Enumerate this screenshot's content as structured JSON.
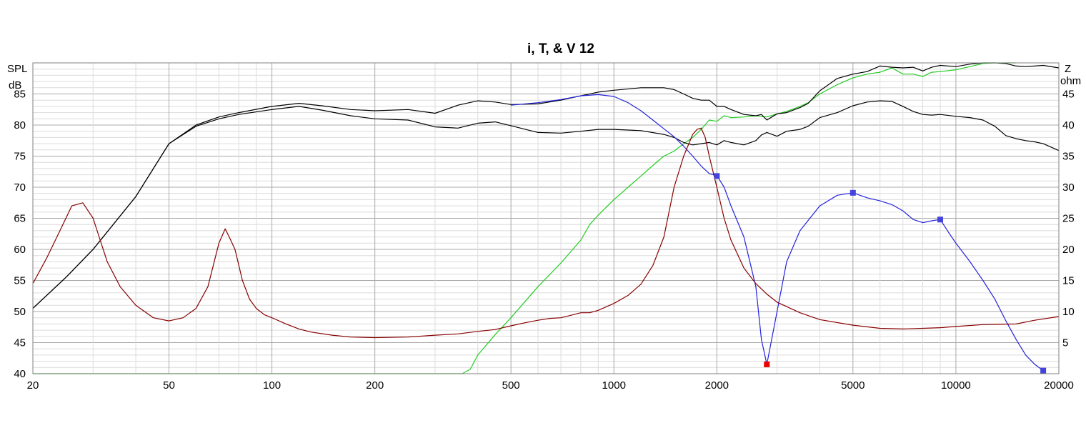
{
  "chart_data": {
    "type": "line",
    "title": "i, T, & V 12",
    "x_scale": "log",
    "xlim": [
      20,
      20000
    ],
    "y_left": {
      "label_top": "SPL",
      "label_unit": "dB",
      "lim": [
        40,
        90
      ],
      "ticks": [
        40,
        45,
        50,
        55,
        60,
        65,
        70,
        75,
        80,
        85
      ]
    },
    "y_right": {
      "label_top": "Z",
      "label_unit": "ohm",
      "lim": [
        0,
        50
      ],
      "ticks": [
        5,
        10,
        15,
        20,
        25,
        30,
        35,
        40,
        45
      ]
    },
    "x_ticks": [
      20,
      50,
      100,
      200,
      500,
      1000,
      2000,
      5000,
      10000,
      20000
    ],
    "grid": true,
    "colors": {
      "spl_upper": "#000000",
      "spl_lower": "#000000",
      "green": "#22cc22",
      "blue": "#2222dd",
      "impedance": "#880000",
      "marker_blue": "#4444dd",
      "marker_red": "#ee0000"
    },
    "series": [
      {
        "key": "spl_upper",
        "axis": "left",
        "x": [
          20,
          25,
          30,
          40,
          50,
          60,
          70,
          80,
          100,
          120,
          140,
          170,
          200,
          250,
          300,
          350,
          400,
          450,
          500,
          600,
          700,
          800,
          900,
          1000,
          1200,
          1400,
          1500,
          1600,
          1700,
          1800,
          1900,
          2000,
          2100,
          2200,
          2400,
          2600,
          2700,
          2800,
          3000,
          3200,
          3500,
          3700,
          4000,
          4500,
          5000,
          5500,
          6000,
          6500,
          7000,
          7500,
          8000,
          8500,
          9000,
          10000,
          11000,
          12000,
          13000,
          14000,
          15000,
          16000,
          17000,
          18000,
          20000
        ],
        "y": [
          50.5,
          55.5,
          60,
          68.5,
          77,
          80,
          81.3,
          82,
          83,
          83.5,
          83.1,
          82.5,
          82.3,
          82.5,
          81.9,
          83.2,
          83.9,
          83.7,
          83.3,
          83.4,
          84,
          84.7,
          85.3,
          85.6,
          86,
          86,
          85.7,
          85,
          84.3,
          84,
          84,
          83,
          83,
          82.5,
          81.7,
          81.5,
          81.7,
          80.8,
          81.8,
          82,
          82.8,
          83.5,
          85.5,
          87.5,
          88.2,
          88.6,
          89.5,
          89.3,
          89.2,
          89.3,
          88.7,
          89.3,
          89.6,
          89.4,
          89.8,
          90,
          90,
          89.9,
          89.5,
          89.4,
          89.5,
          89.6,
          89.2
        ]
      },
      {
        "key": "spl_lower",
        "axis": "left",
        "x": [
          20,
          25,
          30,
          40,
          50,
          60,
          70,
          80,
          100,
          120,
          140,
          170,
          200,
          250,
          300,
          350,
          400,
          450,
          500,
          600,
          700,
          800,
          900,
          1000,
          1200,
          1400,
          1500,
          1600,
          1700,
          1800,
          1900,
          2000,
          2100,
          2200,
          2400,
          2600,
          2700,
          2800,
          3000,
          3200,
          3500,
          3700,
          4000,
          4500,
          5000,
          5500,
          6000,
          6500,
          7000,
          7500,
          8000,
          8500,
          9000,
          10000,
          11000,
          12000,
          13000,
          14000,
          15000,
          16000,
          17000,
          18000,
          20000
        ],
        "y": [
          50.5,
          55.5,
          60,
          68.5,
          77,
          79.8,
          81,
          81.7,
          82.5,
          83,
          82.4,
          81.5,
          81,
          80.8,
          79.7,
          79.5,
          80.3,
          80.5,
          79.9,
          78.8,
          78.7,
          79,
          79.3,
          79.3,
          79.1,
          78.5,
          78,
          77.2,
          76.8,
          77,
          77.2,
          76.8,
          77.5,
          77.2,
          76.8,
          77.5,
          78.4,
          78.8,
          78.2,
          79,
          79.3,
          79.8,
          81.2,
          82,
          83.1,
          83.7,
          83.9,
          83.8,
          83,
          82.2,
          81.7,
          81.6,
          81.7,
          81.4,
          81.2,
          80.8,
          79.8,
          78.3,
          77.8,
          77.5,
          77.3,
          77,
          75.9
        ]
      },
      {
        "key": "green",
        "axis": "left",
        "x": [
          20,
          360,
          380,
          400,
          450,
          500,
          600,
          700,
          800,
          850,
          900,
          1000,
          1100,
          1200,
          1300,
          1400,
          1500,
          1600,
          1700,
          1800,
          1900,
          2000,
          2100,
          2200,
          2400,
          2600,
          2800,
          3000,
          3200,
          3500,
          3700,
          4000,
          4500,
          5000,
          5500,
          6000,
          6500,
          7000,
          7500,
          8000,
          8500,
          9000,
          10000,
          11000,
          12000,
          13000,
          14000,
          15000
        ],
        "y": [
          40,
          40,
          40.7,
          43,
          46.3,
          49,
          54,
          57.8,
          61.5,
          64,
          65.5,
          68,
          70,
          71.8,
          73.5,
          75,
          75.8,
          77,
          78,
          79.3,
          80.8,
          80.6,
          81.5,
          81.2,
          81.3,
          81.5,
          81.3,
          81.8,
          82.2,
          83,
          83.6,
          85,
          86.5,
          87.6,
          88.2,
          88.5,
          89.2,
          88.2,
          88.2,
          87.8,
          88.5,
          88.6,
          88.9,
          89.4,
          89.9,
          90,
          90,
          90
        ]
      },
      {
        "key": "blue",
        "axis": "left",
        "x": [
          500,
          600,
          700,
          800,
          900,
          1000,
          1100,
          1200,
          1300,
          1400,
          1500,
          1600,
          1700,
          1800,
          1900,
          2000,
          2100,
          2200,
          2400,
          2600,
          2700,
          2800,
          3000,
          3200,
          3500,
          4000,
          4500,
          5000,
          5500,
          6000,
          6500,
          7000,
          7500,
          8000,
          8500,
          9000,
          9500,
          10000,
          11000,
          12000,
          13000,
          14000,
          15000,
          16000,
          17000,
          18000
        ],
        "y": [
          83.2,
          83.6,
          84.1,
          84.7,
          84.9,
          84.6,
          83.6,
          82.3,
          80.8,
          79.4,
          78.1,
          76.6,
          75,
          73.4,
          72.2,
          71.9,
          70,
          67,
          62,
          54,
          45.5,
          41.5,
          50,
          58,
          63,
          67,
          68.7,
          69.1,
          68.3,
          67.8,
          67.2,
          66.2,
          64.8,
          64.3,
          64.6,
          64.8,
          62.8,
          61,
          58,
          55,
          52,
          48.5,
          45.5,
          43,
          41.5,
          40.5
        ]
      },
      {
        "key": "impedance",
        "axis": "right",
        "x": [
          20,
          22,
          24,
          26,
          28,
          30,
          33,
          36,
          40,
          45,
          50,
          55,
          60,
          65,
          70,
          73,
          75,
          78,
          82,
          86,
          90,
          95,
          100,
          110,
          120,
          130,
          150,
          170,
          200,
          250,
          300,
          350,
          400,
          450,
          500,
          550,
          600,
          650,
          700,
          750,
          800,
          850,
          900,
          1000,
          1100,
          1200,
          1300,
          1400,
          1500,
          1600,
          1700,
          1750,
          1800,
          1850,
          1900,
          2000,
          2100,
          2200,
          2400,
          2600,
          2800,
          3000,
          3500,
          4000,
          5000,
          6000,
          7000,
          8000,
          9000,
          10000,
          12000,
          15000,
          17000,
          20000
        ],
        "y": [
          14.5,
          18.7,
          23,
          27,
          27.5,
          25,
          18,
          14,
          11,
          9,
          8.5,
          9,
          10.5,
          14,
          21,
          23.3,
          22,
          20,
          15,
          12,
          10.5,
          9.5,
          9,
          8,
          7.2,
          6.7,
          6.2,
          5.9,
          5.8,
          5.9,
          6.2,
          6.4,
          6.8,
          7.1,
          7.7,
          8.2,
          8.6,
          8.9,
          9,
          9.4,
          9.8,
          9.8,
          10.2,
          11.3,
          12.6,
          14.4,
          17.4,
          22,
          30,
          35,
          38.5,
          39.3,
          39.5,
          38,
          35,
          30,
          25,
          21.5,
          17,
          14.5,
          12.8,
          11.5,
          9.8,
          8.7,
          7.8,
          7.3,
          7.2,
          7.3,
          7.4,
          7.6,
          7.9,
          8,
          8.6,
          9.2
        ]
      }
    ],
    "markers": [
      {
        "x": 2000,
        "y": 71.8,
        "color": "blue"
      },
      {
        "x": 2800,
        "y": 41.5,
        "color": "red"
      },
      {
        "x": 5000,
        "y": 69.1,
        "color": "blue"
      },
      {
        "x": 9000,
        "y": 64.8,
        "color": "blue"
      },
      {
        "x": 18000,
        "y": 40.5,
        "color": "blue"
      }
    ]
  }
}
